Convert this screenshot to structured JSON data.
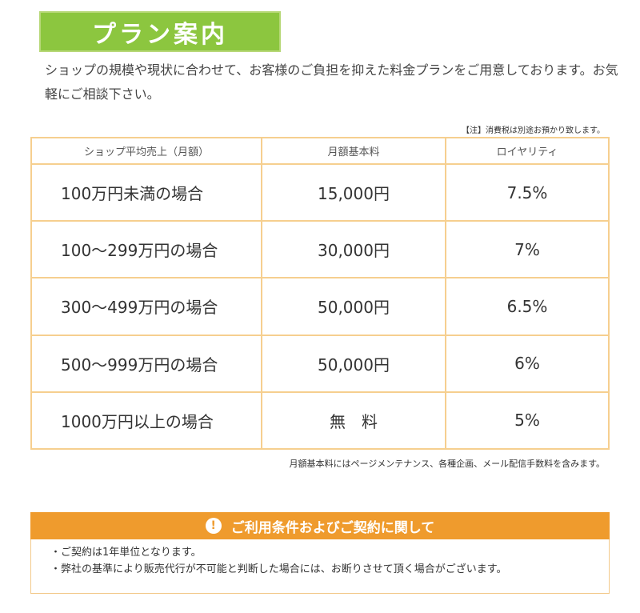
{
  "title": "プラン案内",
  "intro": "ショップの規模や現状に合わせて、お客様のご負担を抑えた料金プランをご用意しております。お気軽にご相談下さい。",
  "tax_note": "【注】消費税は別途お預かり致します。",
  "table": {
    "headers": [
      "ショップ平均売上（月額）",
      "月額基本料",
      "ロイヤリティ"
    ],
    "rows": [
      {
        "condition": "100万円未満の場合",
        "fee": "15,000円",
        "royalty": "7.5%"
      },
      {
        "condition": "100〜299万円の場合",
        "fee": "30,000円",
        "royalty": "7%"
      },
      {
        "condition": "300〜499万円の場合",
        "fee": "50,000円",
        "royalty": "6.5%"
      },
      {
        "condition": "500〜999万円の場合",
        "fee": "50,000円",
        "royalty": "6%"
      },
      {
        "condition": "1000万円以上の場合",
        "fee": "無　料",
        "royalty": "5%"
      }
    ]
  },
  "fee_note": "月額基本料にはページメンテナンス、各種企画、メール配信手数料を含みます。",
  "terms": {
    "icon": "exclamation-icon",
    "icon_glyph": "!",
    "title": "ご利用条件およびご契約に関して",
    "items": [
      "・ご契約は1年単位となります。",
      "・弊社の基準により販売代行が不可能と判断した場合には、お断りさせて頂く場合がございます。"
    ]
  },
  "colors": {
    "title_green": "#8cc63f",
    "table_border": "#f6cf8f",
    "terms_orange": "#ef9b2d"
  }
}
